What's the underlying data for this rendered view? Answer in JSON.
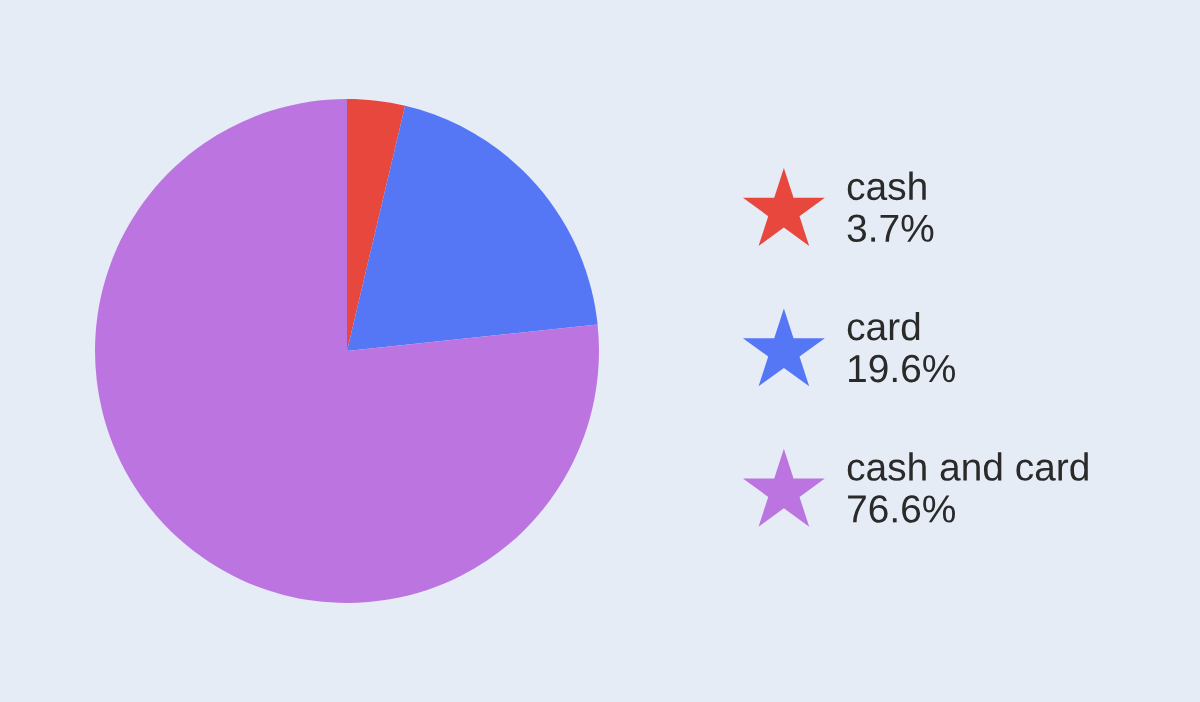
{
  "chart_data": {
    "type": "pie",
    "categories": [
      "cash",
      "card",
      "cash and card"
    ],
    "values": [
      3.7,
      19.6,
      76.6
    ],
    "colors": [
      "#e8473e",
      "#5577f6",
      "#bc75e0"
    ],
    "value_labels": [
      "3.7%",
      "19.6%",
      "76.6%"
    ],
    "legend": "right",
    "marker": "star"
  }
}
